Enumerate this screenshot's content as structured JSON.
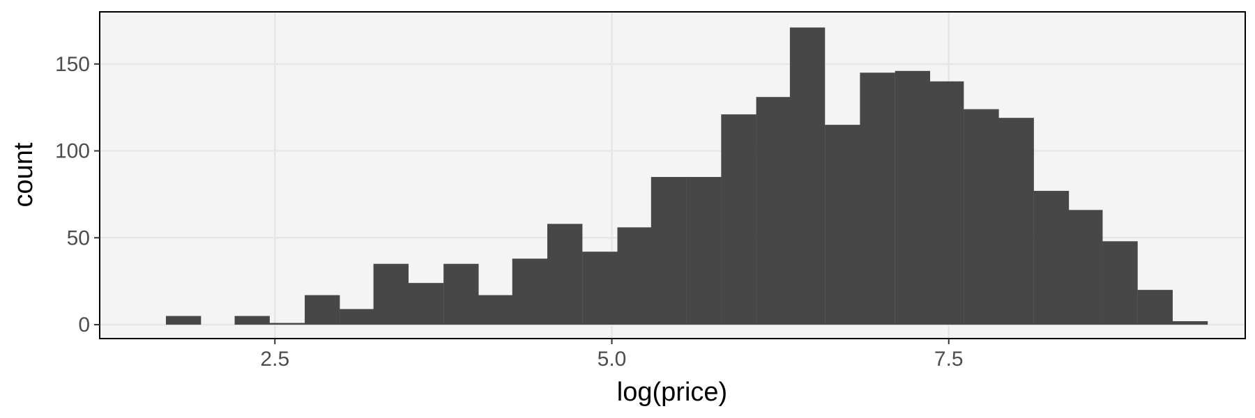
{
  "chart_data": {
    "type": "bar",
    "xlabel": "log(price)",
    "ylabel": "count",
    "xlim": [
      1.2,
      9.7
    ],
    "ylim": [
      -8,
      180
    ],
    "x_ticks": [
      2.5,
      5.0,
      7.5
    ],
    "x_tick_labels": [
      "2.5",
      "5.0",
      "7.5"
    ],
    "y_ticks": [
      0,
      50,
      100,
      150
    ],
    "y_tick_labels": [
      "0",
      "50",
      "100",
      "150"
    ],
    "grid": true,
    "bin_width": 0.2575,
    "bins": [
      {
        "x": 1.82,
        "count": 5
      },
      {
        "x": 2.08,
        "count": 0
      },
      {
        "x": 2.33,
        "count": 5
      },
      {
        "x": 2.59,
        "count": 1
      },
      {
        "x": 2.85,
        "count": 17
      },
      {
        "x": 3.11,
        "count": 9
      },
      {
        "x": 3.36,
        "count": 35
      },
      {
        "x": 3.62,
        "count": 24
      },
      {
        "x": 3.88,
        "count": 35
      },
      {
        "x": 4.14,
        "count": 17
      },
      {
        "x": 4.39,
        "count": 38
      },
      {
        "x": 4.65,
        "count": 58
      },
      {
        "x": 4.91,
        "count": 42
      },
      {
        "x": 5.17,
        "count": 56
      },
      {
        "x": 5.42,
        "count": 85
      },
      {
        "x": 5.68,
        "count": 85
      },
      {
        "x": 5.94,
        "count": 121
      },
      {
        "x": 6.2,
        "count": 131
      },
      {
        "x": 6.45,
        "count": 171
      },
      {
        "x": 6.71,
        "count": 115
      },
      {
        "x": 6.97,
        "count": 145
      },
      {
        "x": 7.23,
        "count": 146
      },
      {
        "x": 7.48,
        "count": 140
      },
      {
        "x": 7.74,
        "count": 124
      },
      {
        "x": 8.0,
        "count": 119
      },
      {
        "x": 8.26,
        "count": 77
      },
      {
        "x": 8.51,
        "count": 66
      },
      {
        "x": 8.77,
        "count": 48
      },
      {
        "x": 9.03,
        "count": 20
      },
      {
        "x": 9.29,
        "count": 2
      }
    ],
    "colors": {
      "bar": "#474747",
      "panel": "#f4f4f4",
      "grid": "#e6e6e6",
      "border": "#000000",
      "tick_text": "#4d4d4d"
    }
  }
}
